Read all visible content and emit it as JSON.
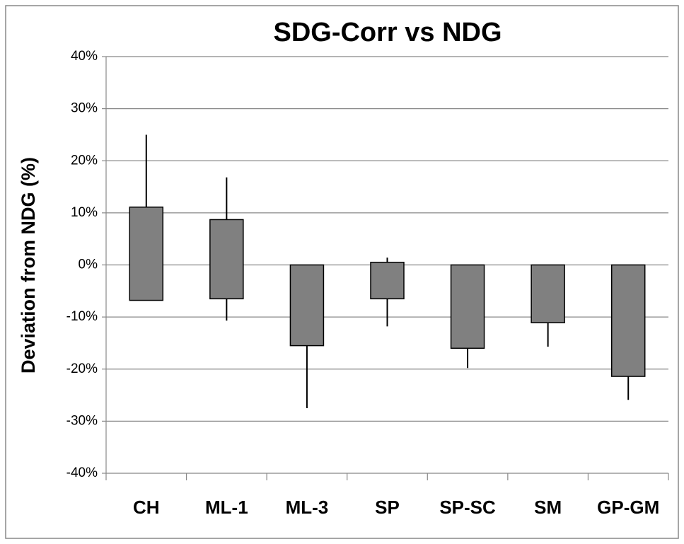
{
  "chart_data": {
    "type": "floating_bar",
    "title": "SDG-Corr vs NDG",
    "y_label": "Deviation from NDG (%)",
    "categories": [
      "CH",
      "ML-1",
      "ML-3",
      "SP",
      "SP-SC",
      "SM",
      "GP-GM"
    ],
    "box_high": [
      11.1,
      8.7,
      0,
      0.5,
      0,
      0,
      0
    ],
    "box_low": [
      -6.8,
      -6.5,
      -15.5,
      -6.5,
      -16,
      -11.1,
      -21.4
    ],
    "whisker_high": [
      25,
      16.8,
      0,
      1.4,
      0,
      0,
      0
    ],
    "whisker_low": [
      -6.8,
      -10.7,
      -27.5,
      -11.8,
      -19.8,
      -15.7,
      -25.9
    ],
    "color": "#808080",
    "grid": true,
    "ylim": [
      -40,
      40
    ],
    "yticks": [
      {
        "value": -40,
        "label": "-40%"
      },
      {
        "value": -30,
        "label": "-30%"
      },
      {
        "value": -20,
        "label": "-20%"
      },
      {
        "value": -10,
        "label": "-10%"
      },
      {
        "value": 0,
        "label": "0%"
      },
      {
        "value": 10,
        "label": "10%"
      },
      {
        "value": 20,
        "label": "20%"
      },
      {
        "value": 30,
        "label": "30%"
      },
      {
        "value": 40,
        "label": "40%"
      }
    ]
  }
}
